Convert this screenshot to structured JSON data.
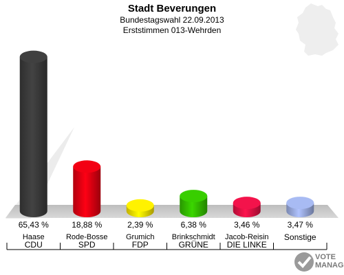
{
  "header": {
    "title": "Stadt Beverungen",
    "subtitle1": "Bundestagswahl 22.09.2013",
    "subtitle2": "Erststimmen 013-Wehrden"
  },
  "logo": {
    "line1": "VOTE",
    "line2": "MANAGER"
  },
  "chart_data": {
    "type": "bar",
    "title": "Stadt Beverungen",
    "value_suffix": " %",
    "ylim": [
      0,
      70
    ],
    "categories": [
      "Haase",
      "Rode-Bosse",
      "Grumich",
      "Brinkschmidt",
      "Jacob-Reisin",
      ""
    ],
    "parties": [
      "CDU",
      "SPD",
      "FDP",
      "GRÜNE",
      "DIE LINKE",
      "Sonstige"
    ],
    "values": [
      65.43,
      18.88,
      2.39,
      6.38,
      3.46,
      3.47
    ],
    "value_labels": [
      "65,43 %",
      "18,88 %",
      "2,39 %",
      "6,38 %",
      "3,46 %",
      "3,47 %"
    ],
    "colors": [
      "#3a3a3a",
      "#dd0011",
      "#f2dc00",
      "#33bb00",
      "#dd1144",
      "#99aadd"
    ]
  }
}
